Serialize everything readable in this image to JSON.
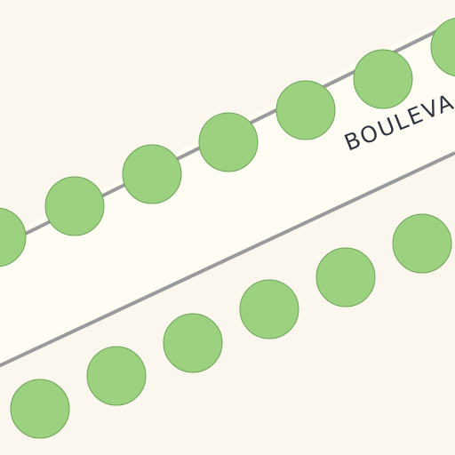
{
  "map": {
    "street_label": "BOULEVA",
    "colors": {
      "background": "#fbf7ee",
      "road_fill": "#fffcf3",
      "road_edge": "#9a9a9a",
      "tree_fill": "#9bd17f",
      "tree_stroke": "#6ea45a",
      "label": "#2f3440"
    },
    "icon_names": [
      "street-tree-icon"
    ]
  }
}
